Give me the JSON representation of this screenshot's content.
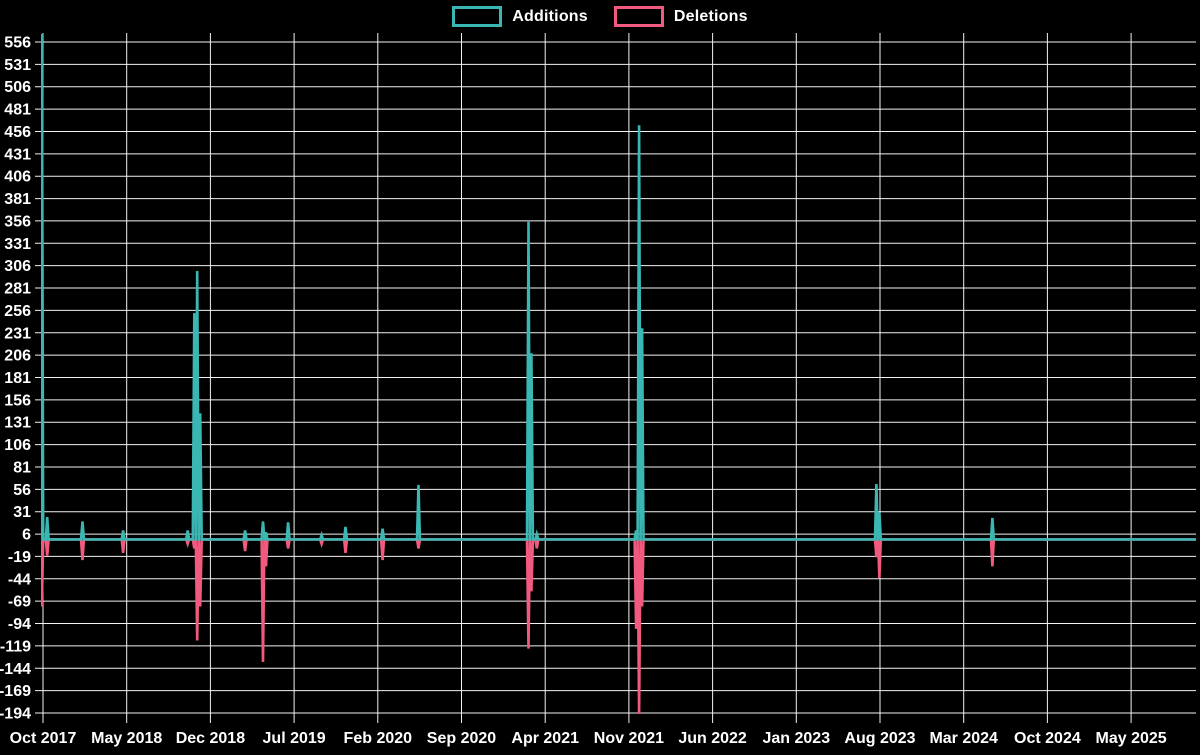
{
  "chart": {
    "background_color": "#000000",
    "grid_color": "#f2f2f2",
    "text_color": "#ffffff",
    "legend": {
      "additions_label": "Additions",
      "deletions_label": "Deletions"
    }
  },
  "chart_data": {
    "type": "line",
    "title": "",
    "legend_position": "top-center",
    "grid": true,
    "background": "#000000",
    "x_axis": {
      "type": "time",
      "tick_labels": [
        "Oct 2017",
        "May 2018",
        "Dec 2018",
        "Jul 2019",
        "Feb 2020",
        "Sep 2020",
        "Apr 2021",
        "Nov 2021",
        "Jun 2022",
        "Jan 2023",
        "Aug 2023",
        "Mar 2024",
        "Oct 2024",
        "May 2025"
      ],
      "months_per_tick": 7
    },
    "y_axis": {
      "min": -194,
      "max": 556,
      "step": 25,
      "ylim": [
        -194,
        556
      ]
    },
    "series": [
      {
        "name": "Additions",
        "color": "#3bb7b3"
      },
      {
        "name": "Deletions",
        "color": "#f2597f"
      }
    ],
    "baseline": 0,
    "note": "weekly values are 0 except listed events; m = months after Oct 2017; first additions value exceeds axis top (clipped)",
    "weekly_events": [
      {
        "date": "2017-10",
        "m": -0.1,
        "additions": 600,
        "deletions": -75
      },
      {
        "date": "2017-10",
        "m": 0.35,
        "additions": 25,
        "deletions": -18
      },
      {
        "date": "2018-01",
        "m": 3.3,
        "additions": 20,
        "deletions": -23
      },
      {
        "date": "2018-04",
        "m": 6.7,
        "additions": 10,
        "deletions": -15
      },
      {
        "date": "2018-10",
        "m": 12.1,
        "additions": 10,
        "deletions": -5
      },
      {
        "date": "2018-11",
        "m": 12.65,
        "additions": 253,
        "deletions": -10
      },
      {
        "date": "2018-11",
        "m": 12.9,
        "additions": 300,
        "deletions": -113
      },
      {
        "date": "2018-12",
        "m": 13.15,
        "additions": 141,
        "deletions": -75
      },
      {
        "date": "2019-02",
        "m": 16.9,
        "additions": 10,
        "deletions": -13
      },
      {
        "date": "2019-04",
        "m": 18.4,
        "additions": 20,
        "deletions": -137
      },
      {
        "date": "2019-04",
        "m": 18.65,
        "additions": 8,
        "deletions": -30
      },
      {
        "date": "2019-06",
        "m": 20.5,
        "additions": 19,
        "deletions": -10
      },
      {
        "date": "2019-09",
        "m": 23.3,
        "additions": 5,
        "deletions": -5
      },
      {
        "date": "2019-11",
        "m": 25.3,
        "additions": 14,
        "deletions": -15
      },
      {
        "date": "2020-02",
        "m": 28.4,
        "additions": 12,
        "deletions": -23
      },
      {
        "date": "2020-05",
        "m": 31.4,
        "additions": 61,
        "deletions": -10
      },
      {
        "date": "2021-02",
        "m": 40.6,
        "additions": 355,
        "deletions": -122
      },
      {
        "date": "2021-03",
        "m": 40.85,
        "additions": 208,
        "deletions": -58
      },
      {
        "date": "2021-03",
        "m": 41.3,
        "additions": 6,
        "deletions": -10
      },
      {
        "date": "2021-11",
        "m": 49.6,
        "additions": 10,
        "deletions": -100
      },
      {
        "date": "2021-11",
        "m": 49.85,
        "additions": 463,
        "deletions": -195
      },
      {
        "date": "2021-12",
        "m": 50.1,
        "additions": 236,
        "deletions": -75
      },
      {
        "date": "2023-07",
        "m": 69.7,
        "additions": 62,
        "deletions": -20
      },
      {
        "date": "2023-07",
        "m": 69.95,
        "additions": 30,
        "deletions": -43
      },
      {
        "date": "2024-05",
        "m": 79.4,
        "additions": 24,
        "deletions": -30
      }
    ]
  }
}
